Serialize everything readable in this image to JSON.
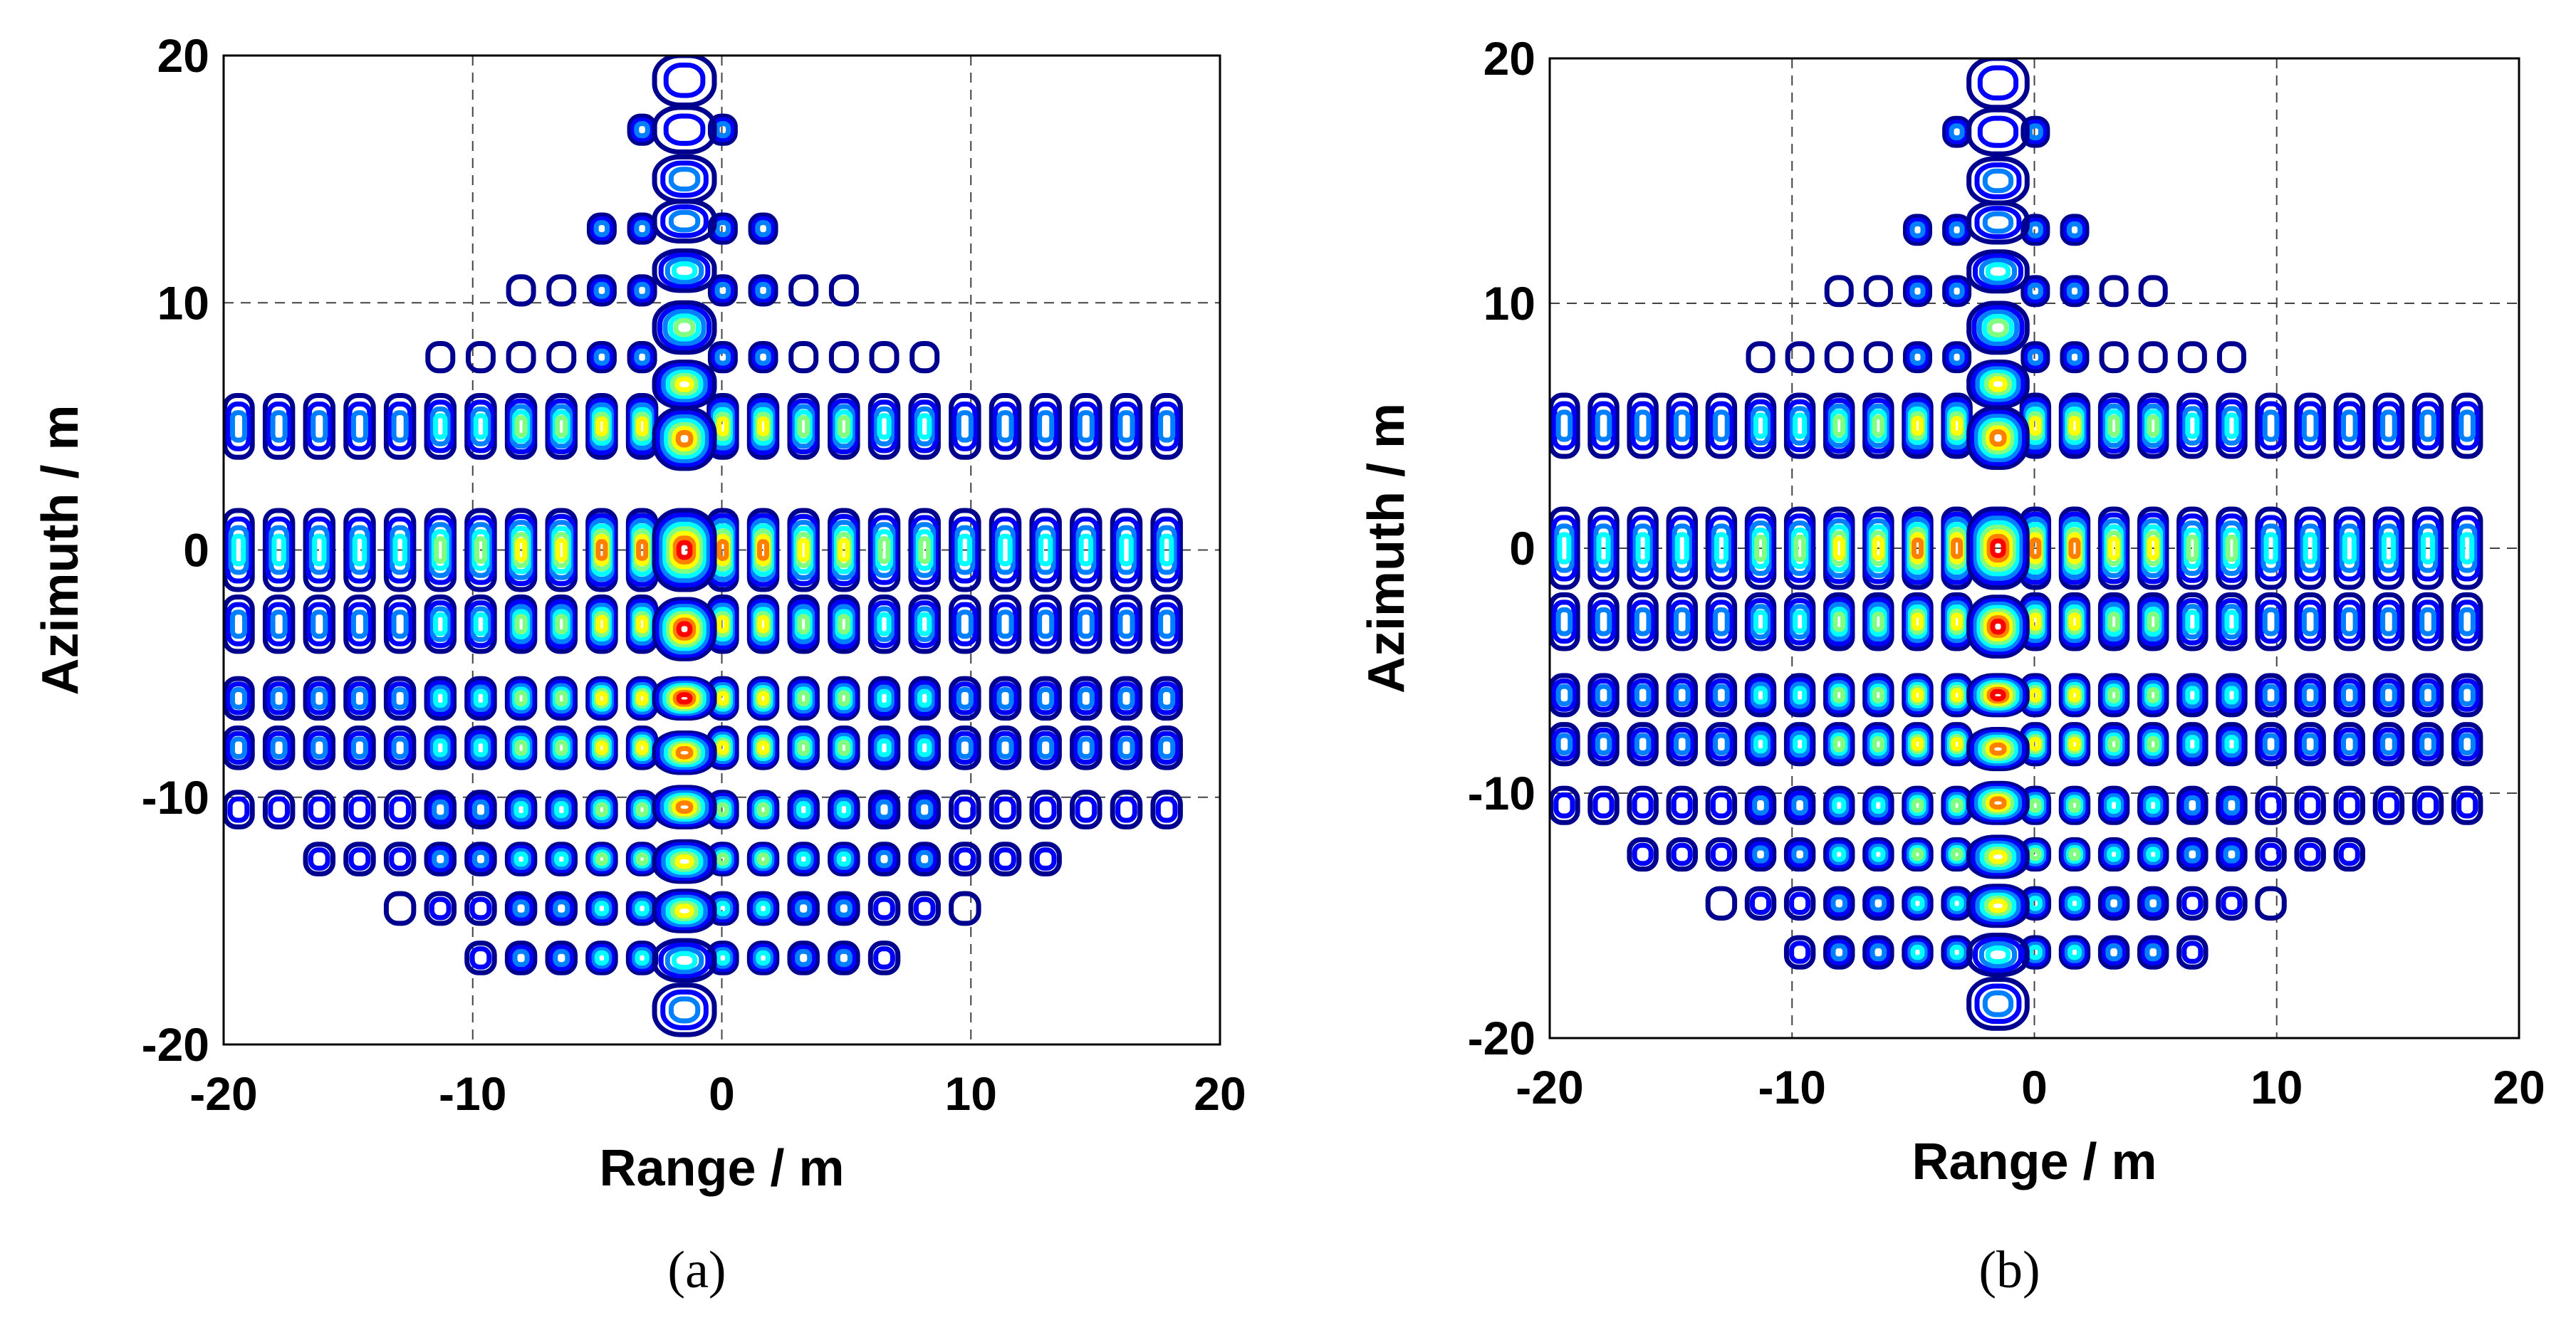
{
  "figure": {
    "panels": [
      "(a)",
      "(b)"
    ]
  },
  "chart_data": [
    {
      "type": "contour",
      "panel": "(a)",
      "caption": "(a)",
      "xlabel": "Range / m",
      "ylabel": "Azimuth / m",
      "xlim": [
        -20,
        20
      ],
      "ylim": [
        -20,
        20
      ],
      "xticks": [
        -20,
        -10,
        0,
        10,
        20
      ],
      "yticks": [
        -20,
        -10,
        0,
        10,
        20
      ],
      "grid": true,
      "colormap": [
        "#00008f",
        "#0000ff",
        "#0080ff",
        "#00ffff",
        "#80ff80",
        "#ffff00",
        "#ff8000",
        "#ff0000"
      ],
      "main_lobe": {
        "range": -1.5,
        "azimuth": 0
      },
      "azimuth_sidelobe_rows": [
        5,
        0,
        -3,
        -6,
        -8,
        -10.5,
        -12.5,
        -14.5,
        -16.5
      ],
      "range_sidelobe_extent": [
        -20,
        20
      ],
      "azimuth_sidelobe_extent": [
        -20,
        20
      ]
    },
    {
      "type": "contour",
      "panel": "(b)",
      "caption": "(b)",
      "xlabel": "Range / m",
      "ylabel": "Azimuth / m",
      "xlim": [
        -20,
        20
      ],
      "ylim": [
        -20,
        20
      ],
      "xticks": [
        -20,
        -10,
        0,
        10,
        20
      ],
      "yticks": [
        -20,
        -10,
        0,
        10,
        20
      ],
      "grid": true,
      "colormap": [
        "#00008f",
        "#0000ff",
        "#0080ff",
        "#00ffff",
        "#80ff80",
        "#ffff00",
        "#ff8000",
        "#ff0000"
      ],
      "main_lobe": {
        "range": -1.5,
        "azimuth": 0
      },
      "azimuth_sidelobe_rows": [
        5,
        0,
        -3,
        -6,
        -8,
        -10.5,
        -12.5,
        -14.5,
        -16.5
      ],
      "range_sidelobe_extent": [
        -20,
        20
      ],
      "azimuth_sidelobe_extent": [
        -20,
        20
      ]
    }
  ]
}
